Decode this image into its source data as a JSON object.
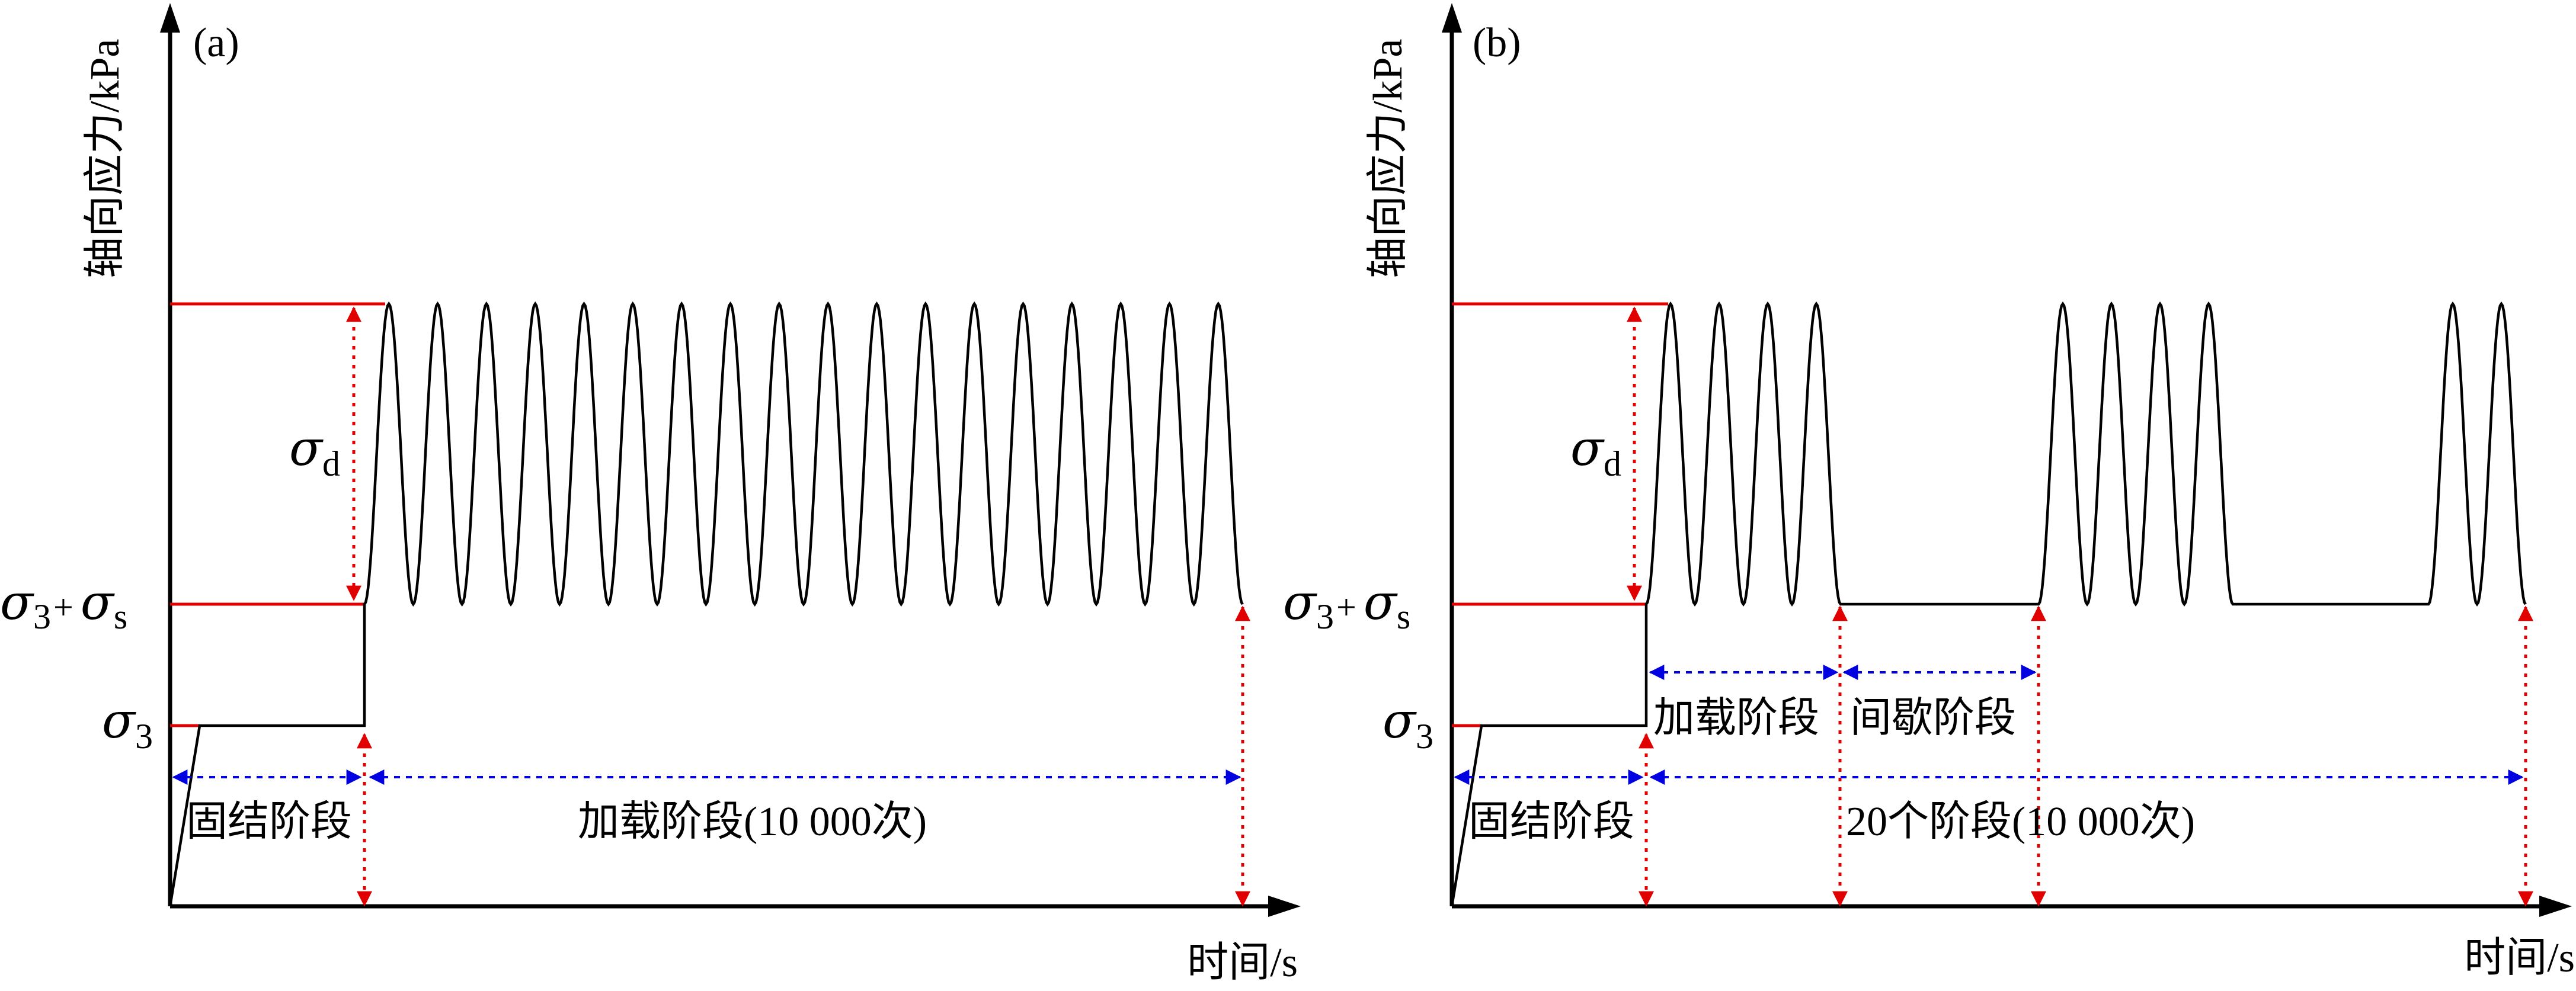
{
  "panels": [
    {
      "id": "a",
      "panel_label": "(a)",
      "y_axis_label": "轴向应力/kPa",
      "x_axis_label": "时间/s",
      "levels": {
        "sigma3": {
          "symbol": "σ",
          "sub": "3"
        },
        "sigma3_plus_sigmas": {
          "symbol1": "σ",
          "sub1": "3",
          "plus": "+",
          "symbol2": "σ",
          "sub2": "s"
        },
        "sigma_d": {
          "symbol": "σ",
          "sub": "d"
        }
      },
      "stage_labels": [
        {
          "text": "固结阶段"
        },
        {
          "text": "加载阶段(10 000次)"
        }
      ],
      "cycles_shown": 18
    },
    {
      "id": "b",
      "panel_label": "(b)",
      "y_axis_label": "轴向应力/kPa",
      "x_axis_label": "时间/s",
      "levels": {
        "sigma3": {
          "symbol": "σ",
          "sub": "3"
        },
        "sigma3_plus_sigmas": {
          "symbol1": "σ",
          "sub1": "3",
          "plus": "+",
          "symbol2": "σ",
          "sub2": "s"
        },
        "sigma_d": {
          "symbol": "σ",
          "sub": "d"
        }
      },
      "stage_labels": [
        {
          "text": "固结阶段"
        },
        {
          "text": "加载阶段"
        },
        {
          "text": "间歇阶段"
        },
        {
          "text": "20个阶段(10 000次)"
        }
      ],
      "cycle_groups": [
        4,
        4,
        2
      ]
    }
  ],
  "colors": {
    "axis": "#000000",
    "curve": "#000000",
    "reference_line": "#e00000",
    "stress_arrow": "#e00000",
    "time_arrow": "#0000e0"
  }
}
